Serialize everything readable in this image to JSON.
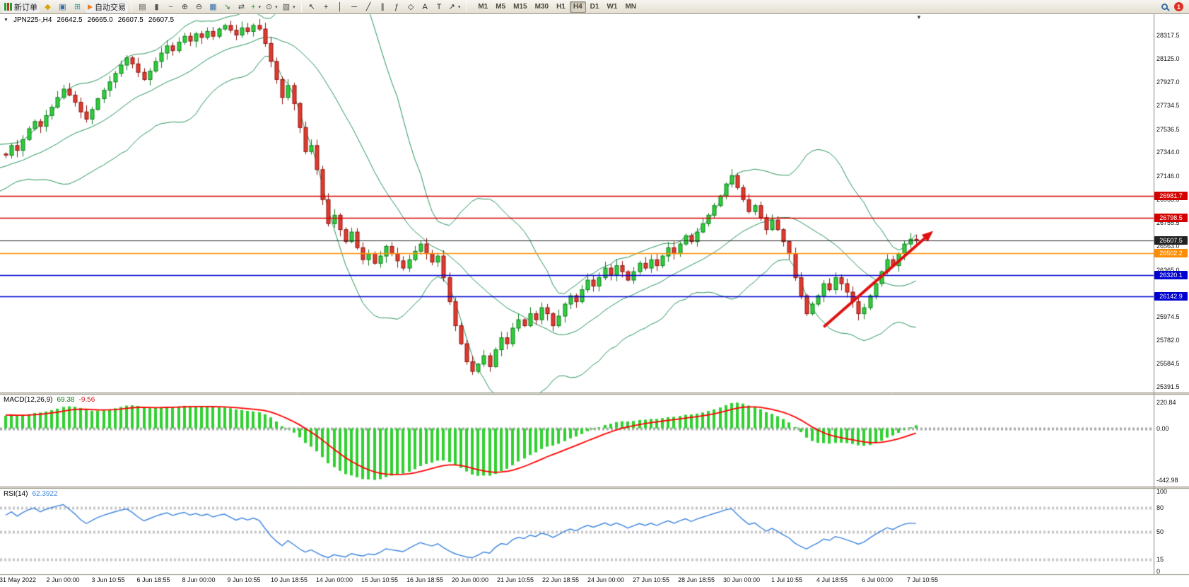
{
  "toolbar": {
    "new_order_label": "新订单",
    "autotrading_label": "自动交易",
    "notification_count": "1",
    "icons_left": [
      {
        "name": "metaeditor-icon",
        "glyph": "◆",
        "color": "#dba400"
      },
      {
        "name": "market-watch-icon",
        "glyph": "▣",
        "color": "#3a6ea5"
      },
      {
        "name": "navigator-icon",
        "glyph": "⊞",
        "color": "#3aa0a0"
      }
    ],
    "chart_tools": [
      {
        "name": "bar-chart-icon",
        "glyph": "▤",
        "color": "#555555"
      },
      {
        "name": "candlestick-chart-icon",
        "glyph": "▮",
        "color": "#555555"
      },
      {
        "name": "line-chart-icon",
        "glyph": "~",
        "color": "#555555"
      },
      {
        "name": "zoom-in-icon",
        "glyph": "⊕",
        "color": "#444444"
      },
      {
        "name": "zoom-out-icon",
        "glyph": "⊖",
        "color": "#444444"
      },
      {
        "name": "tile-windows-icon",
        "glyph": "▦",
        "color": "#3a6ea5"
      },
      {
        "name": "autoscroll-icon",
        "glyph": "↘",
        "color": "#2e7d32"
      },
      {
        "name": "chart-shift-icon",
        "glyph": "⇄",
        "color": "#555555"
      },
      {
        "name": "new-chart-button",
        "glyph": "+",
        "color": "#1fa32a",
        "dropdown": true
      },
      {
        "name": "periods-button",
        "glyph": "⊙",
        "color": "#555555",
        "dropdown": true
      },
      {
        "name": "templates-button",
        "glyph": "▧",
        "color": "#555555",
        "dropdown": true
      }
    ],
    "draw_tools": [
      {
        "name": "cursor-icon",
        "glyph": "↖",
        "color": "#333333"
      },
      {
        "name": "crosshair-icon",
        "glyph": "+",
        "color": "#333333"
      },
      {
        "name": "vertical-line-icon",
        "glyph": "│",
        "color": "#333333"
      },
      {
        "name": "horizontal-line-icon",
        "glyph": "─",
        "color": "#333333"
      },
      {
        "name": "trendline-icon",
        "glyph": "╱",
        "color": "#333333"
      },
      {
        "name": "channel-icon",
        "glyph": "∥",
        "color": "#333333"
      },
      {
        "name": "fibonacci-icon",
        "glyph": "ƒ",
        "color": "#333333"
      },
      {
        "name": "shapes-icon",
        "glyph": "◇",
        "color": "#333333"
      },
      {
        "name": "text-icon",
        "glyph": "A",
        "color": "#333333"
      },
      {
        "name": "text-label-icon",
        "glyph": "T",
        "color": "#333333"
      },
      {
        "name": "arrows-button",
        "glyph": "↗",
        "color": "#333333",
        "dropdown": true
      }
    ],
    "timeframes": [
      "M1",
      "M5",
      "M15",
      "M30",
      "H1",
      "H4",
      "D1",
      "W1",
      "MN"
    ],
    "active_timeframe": "H4"
  },
  "header": {
    "collapse_glyph": "▼",
    "symbol_period": "JPN225-,H4",
    "open": "26642.5",
    "high": "26665.0",
    "low": "26607.5",
    "close": "26607.5"
  },
  "markers": {
    "chart_shift_glyph": "▼"
  },
  "chart_data": {
    "type": "candlestick",
    "symbol": "JPN225-",
    "timeframe": "H4",
    "style": {
      "up_fill": "#2fcf3a",
      "up_stroke": "#0f7d1f",
      "down_fill": "#e23b2e",
      "down_stroke": "#8a1410",
      "bollinger_color": "#27965a",
      "background": "#ffffff"
    },
    "price_axis": {
      "visible_max": 28494,
      "visible_min": 25344,
      "ticks": [
        28317.5,
        28125.0,
        27927.0,
        27734.5,
        27536.5,
        27344.0,
        27146.0,
        26953.5,
        26755.5,
        26563.0,
        26365.0,
        25974.5,
        25782.0,
        25584.5,
        25391.5
      ]
    },
    "levels": [
      {
        "value": 26981.7,
        "color": "#d40000",
        "badge_color": "#d40000",
        "width": 1.4
      },
      {
        "value": 26798.5,
        "color": "#d40000",
        "badge_color": "#d40000",
        "width": 1.4
      },
      {
        "value": 26607.5,
        "color": "#222222",
        "badge_color": "#222222",
        "width": 1,
        "current_price": true
      },
      {
        "value": 26502.2,
        "color": "#ff9000",
        "badge_color": "#ff8c00",
        "width": 1.6
      },
      {
        "value": 26320.1,
        "color": "#0000d0",
        "badge_color": "#0000d0",
        "width": 1.6
      },
      {
        "value": 26142.9,
        "color": "#0000d0",
        "badge_color": "#0000d0",
        "width": 1.6
      }
    ],
    "overlays": {
      "bollinger": {
        "period": 20,
        "deviation": 2
      }
    },
    "prehistory_closes": [
      26750,
      26800,
      26780,
      26850,
      26900,
      26870,
      26930,
      26980,
      26950,
      27000,
      27050,
      27020,
      27080,
      27120,
      27090,
      27150,
      27200,
      27170,
      27220,
      27260,
      27230,
      27280,
      27250,
      27300,
      27280,
      27320,
      27300,
      27340,
      27310,
      27330
    ],
    "closes": [
      27320,
      27400,
      27360,
      27450,
      27540,
      27600,
      27560,
      27650,
      27720,
      27800,
      27870,
      27820,
      27760,
      27680,
      27620,
      27700,
      27790,
      27860,
      27930,
      28000,
      28070,
      28130,
      28080,
      28010,
      27950,
      28020,
      28100,
      28170,
      28230,
      28190,
      28260,
      28310,
      28270,
      28330,
      28300,
      28350,
      28310,
      28370,
      28400,
      28360,
      28320,
      28380,
      28350,
      28400,
      28370,
      28250,
      28100,
      27950,
      27800,
      27900,
      27750,
      27550,
      27350,
      27400,
      27200,
      26950,
      26750,
      26820,
      26700,
      26600,
      26680,
      26550,
      26450,
      26500,
      26420,
      26480,
      26560,
      26500,
      26440,
      26380,
      26450,
      26520,
      26580,
      26500,
      26430,
      26480,
      26300,
      26100,
      25900,
      25750,
      25600,
      25520,
      25580,
      25650,
      25560,
      25700,
      25800,
      25750,
      25880,
      25950,
      25900,
      26000,
      25950,
      26050,
      26000,
      25900,
      25980,
      26080,
      26150,
      26100,
      26200,
      26280,
      26230,
      26300,
      26380,
      26320,
      26400,
      26350,
      26280,
      26350,
      26420,
      26380,
      26450,
      26400,
      26480,
      26550,
      26500,
      26580,
      26650,
      26600,
      26680,
      26750,
      26820,
      26900,
      26980,
      27080,
      27150,
      27050,
      26950,
      26850,
      26900,
      26800,
      26700,
      26780,
      26700,
      26600,
      26500,
      26300,
      26150,
      26000,
      26080,
      26150,
      26250,
      26200,
      26300,
      26250,
      26180,
      26100,
      26000,
      26050,
      26150,
      26250,
      26350,
      26450,
      26400,
      26500,
      26580,
      26620,
      26607.5
    ],
    "last_ohlc": {
      "open": 26642.5,
      "high": 26665.0,
      "low": 26607.5,
      "close": 26607.5
    },
    "indicators": [
      {
        "type": "macd",
        "label": "MACD(12,26,9)",
        "values_text": [
          "69.38",
          "-9.56"
        ],
        "params": [
          12,
          26,
          9
        ],
        "axis_ticks": [
          220.84,
          0,
          -442.98
        ],
        "axis_max": 290,
        "axis_min": -500,
        "histogram_color": "#2fd12f",
        "signal_color": "#ff0000"
      },
      {
        "type": "rsi",
        "label": "RSI(14)",
        "value_text": "62.3922",
        "period": 14,
        "axis_ticks": [
          100,
          80,
          50,
          15,
          0
        ],
        "levels": [
          80,
          50,
          15
        ],
        "axis_max": 104,
        "axis_min": -4,
        "color": "#3d85e0"
      }
    ],
    "annotation_arrow": {
      "from_index": 142,
      "from_price": 25890,
      "to_index": 161,
      "to_price": 26690,
      "color": "#e01010"
    },
    "time_labels": [
      "31 May 2022",
      "2 Jun 00:00",
      "3 Jun 10:55",
      "6 Jun 18:55",
      "8 Jun 00:00",
      "9 Jun 10:55",
      "10 Jun 18:55",
      "14 Jun 00:00",
      "15 Jun 10:55",
      "16 Jun 18:55",
      "20 Jun 00:00",
      "21 Jun 10:55",
      "22 Jun 18:55",
      "24 Jun 00:00",
      "27 Jun 10:55",
      "28 Jun 18:55",
      "30 Jun 00:00",
      "1 Jul 10:55",
      "4 Jul 18:55",
      "6 Jul 00:00",
      "7 Jul 10:55"
    ]
  }
}
